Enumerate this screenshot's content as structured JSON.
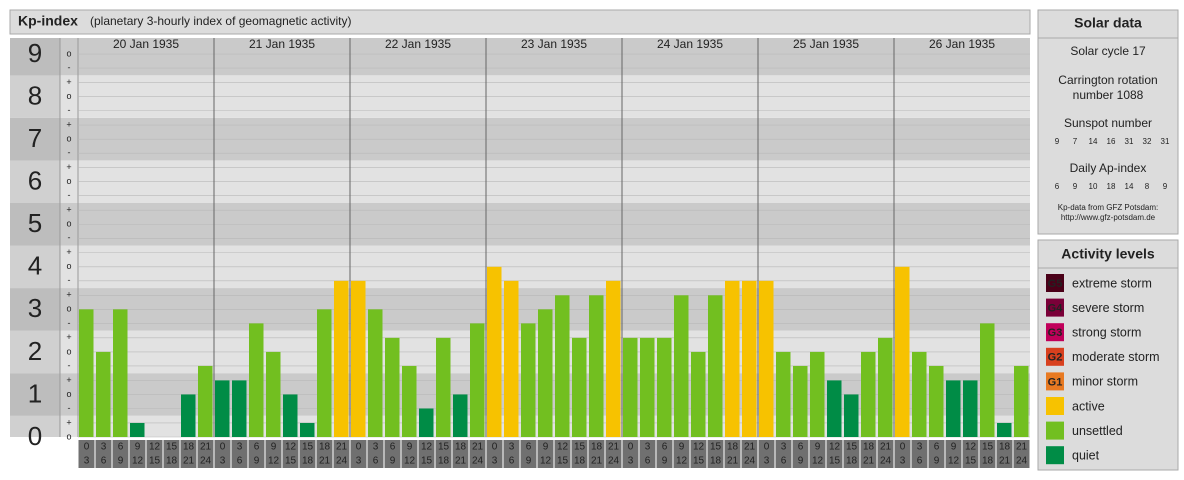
{
  "chart_data": {
    "type": "bar",
    "title": "Kp-index",
    "subtitle": "(planetary 3-hourly index of geomagnetic activity)",
    "days": [
      "20 Jan 1935",
      "21 Jan 1935",
      "22 Jan 1935",
      "23 Jan 1935",
      "24 Jan 1935",
      "25 Jan 1935",
      "26 Jan 1935"
    ],
    "slots": [
      {
        "from": "0",
        "to": "3"
      },
      {
        "from": "3",
        "to": "6"
      },
      {
        "from": "6",
        "to": "9"
      },
      {
        "from": "9",
        "to": "12"
      },
      {
        "from": "12",
        "to": "15"
      },
      {
        "from": "15",
        "to": "18"
      },
      {
        "from": "18",
        "to": "21"
      },
      {
        "from": "21",
        "to": "24"
      }
    ],
    "values": [
      3,
      2,
      3,
      0.33,
      0,
      0,
      1,
      1.67,
      1.33,
      1.33,
      2.67,
      2,
      1,
      0.33,
      3,
      3.67,
      3.67,
      3,
      2.33,
      1.67,
      0.67,
      2.33,
      1,
      2.67,
      4,
      3.67,
      2.67,
      3,
      3.33,
      2.33,
      3.33,
      3.67,
      2.33,
      2.33,
      2.33,
      3.33,
      2,
      3.33,
      3.67,
      3.67,
      3.67,
      2,
      1.67,
      2,
      1.33,
      1,
      2,
      2.33,
      4,
      2,
      1.67,
      1.33,
      1.33,
      2.67,
      0.33,
      1.67
    ],
    "colors": [
      "#72bf20",
      "#72bf20",
      "#72bf20",
      "#008c46",
      "#008c46",
      "#008c46",
      "#008c46",
      "#72bf20",
      "#008c46",
      "#008c46",
      "#72bf20",
      "#72bf20",
      "#008c46",
      "#008c46",
      "#72bf20",
      "#f7c200",
      "#f7c200",
      "#72bf20",
      "#72bf20",
      "#72bf20",
      "#008c46",
      "#72bf20",
      "#008c46",
      "#72bf20",
      "#f7c200",
      "#f7c200",
      "#72bf20",
      "#72bf20",
      "#72bf20",
      "#72bf20",
      "#72bf20",
      "#f7c200",
      "#72bf20",
      "#72bf20",
      "#72bf20",
      "#72bf20",
      "#72bf20",
      "#72bf20",
      "#f7c200",
      "#f7c200",
      "#f7c200",
      "#72bf20",
      "#72bf20",
      "#72bf20",
      "#008c46",
      "#008c46",
      "#72bf20",
      "#72bf20",
      "#f7c200",
      "#72bf20",
      "#72bf20",
      "#008c46",
      "#008c46",
      "#72bf20",
      "#008c46",
      "#72bf20"
    ],
    "ylim": [
      0,
      9.33
    ],
    "yticks": [
      0,
      1,
      2,
      3,
      4,
      5,
      6,
      7,
      8,
      9
    ],
    "minor_ticks": [
      {
        "value": 0,
        "label": "o"
      },
      {
        "value": 0.33,
        "label": "+"
      },
      {
        "value": 0.67,
        "label": "-"
      },
      {
        "value": 1,
        "label": "o"
      },
      {
        "value": 1.33,
        "label": "+"
      },
      {
        "value": 1.67,
        "label": "-"
      },
      {
        "value": 2,
        "label": "o"
      },
      {
        "value": 2.33,
        "label": "+"
      },
      {
        "value": 2.67,
        "label": "-"
      },
      {
        "value": 3,
        "label": "o"
      },
      {
        "value": 3.33,
        "label": "+"
      },
      {
        "value": 3.67,
        "label": "-"
      },
      {
        "value": 4,
        "label": "o"
      },
      {
        "value": 4.33,
        "label": "+"
      },
      {
        "value": 4.67,
        "label": "-"
      },
      {
        "value": 5,
        "label": "o"
      },
      {
        "value": 5.33,
        "label": "+"
      },
      {
        "value": 5.67,
        "label": "-"
      },
      {
        "value": 6,
        "label": "o"
      },
      {
        "value": 6.33,
        "label": "+"
      },
      {
        "value": 6.67,
        "label": "-"
      },
      {
        "value": 7,
        "label": "o"
      },
      {
        "value": 7.33,
        "label": "+"
      },
      {
        "value": 7.67,
        "label": "-"
      },
      {
        "value": 8,
        "label": "o"
      },
      {
        "value": 8.33,
        "label": "+"
      },
      {
        "value": 8.67,
        "label": "-"
      },
      {
        "value": 9,
        "label": "o"
      }
    ],
    "grid": true,
    "solar": {
      "title": "Solar data",
      "cycle": "Solar cycle 17",
      "carrington": [
        "Carrington rotation",
        "number 1088"
      ],
      "sunspot_title": "Sunspot number",
      "sunspot": [
        9,
        7,
        14,
        16,
        31,
        32,
        31
      ],
      "ap_title": "Daily Ap-index",
      "ap": [
        6,
        9,
        10,
        18,
        14,
        8,
        9
      ],
      "source": [
        "Kp-data from GFZ Potsdam:",
        "http://www.gfz-potsdam.de"
      ]
    },
    "legend": {
      "title": "Activity levels",
      "items": [
        {
          "badge": "G5",
          "label": "extreme storm",
          "color": "#4a0018"
        },
        {
          "badge": "G4",
          "label": "severe storm",
          "color": "#7a0038"
        },
        {
          "badge": "G3",
          "label": "strong storm",
          "color": "#c0005a"
        },
        {
          "badge": "G2",
          "label": "moderate storm",
          "color": "#d8401e"
        },
        {
          "badge": "G1",
          "label": "minor storm",
          "color": "#e87a22"
        },
        {
          "label": "active",
          "color": "#f7c200"
        },
        {
          "label": "unsettled",
          "color": "#72bf20"
        },
        {
          "label": "quiet",
          "color": "#008c46"
        }
      ]
    }
  }
}
